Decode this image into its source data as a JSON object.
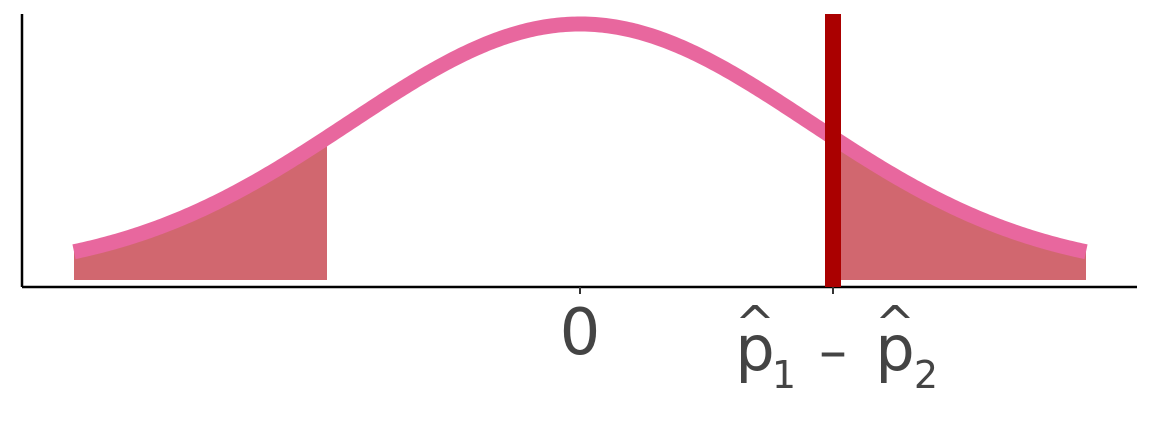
{
  "chart_data": {
    "type": "area",
    "title": "",
    "xlabel": "",
    "ylabel": "",
    "distribution": "normal",
    "mean": 0,
    "sd": 1,
    "xlim": [
      -2.2,
      2.2
    ],
    "observed_statistic": 1.1,
    "shaded_tails": [
      {
        "side": "left",
        "from": -2.2,
        "to": -1.1
      },
      {
        "side": "right",
        "from": 1.1,
        "to": 2.2
      }
    ],
    "x_ticks": [
      {
        "value": 0,
        "label": "0",
        "hat": false
      },
      {
        "value": 1.1,
        "label": "p1 – p2",
        "hat": true,
        "parts": {
          "p1": "p",
          "sub1": "1",
          "minus": "–",
          "p2": "p",
          "sub2": "2",
          "hat": "^"
        }
      }
    ],
    "grid": false,
    "legend": "none"
  },
  "colors": {
    "curve": "#E8679E",
    "observed_line": "#AA0000",
    "tail_fill": "#C43C47",
    "axis": "#000000",
    "tick_text": "#444444"
  }
}
